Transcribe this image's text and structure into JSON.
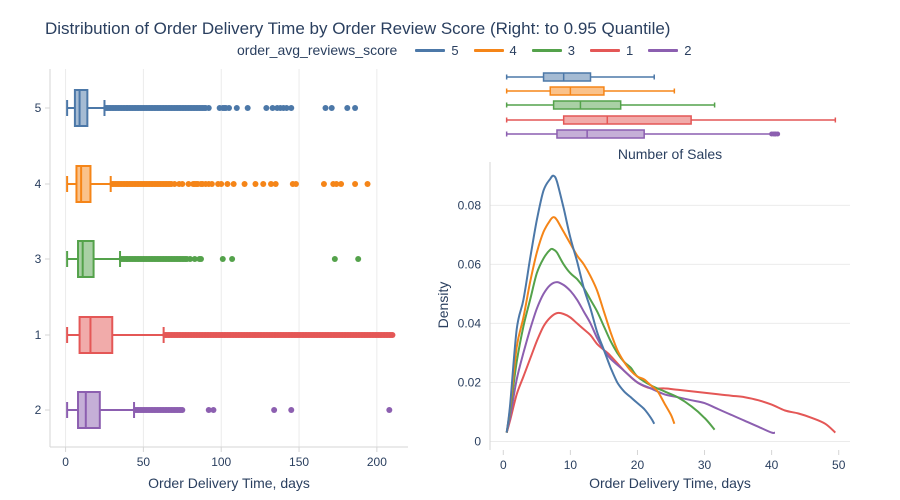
{
  "title": "Distribution of Order Delivery Time by Order Review Score (Right: to 0.95 Quantile)",
  "legend": {
    "title": "order_avg_reviews_score",
    "items": [
      {
        "label": "5",
        "color": "#4c78a8"
      },
      {
        "label": "4",
        "color": "#f58518"
      },
      {
        "label": "3",
        "color": "#54a24b"
      },
      {
        "label": "1",
        "color": "#e45756"
      },
      {
        "label": "2",
        "color": "#8c5fb0"
      }
    ]
  },
  "chart_data": [
    {
      "type": "box",
      "orientation": "horizontal",
      "xlabel": "Order Delivery Time, days",
      "ylabel": "",
      "xlim": [
        -10,
        220
      ],
      "xticks": [
        "0",
        "50",
        "100",
        "150",
        "200"
      ],
      "grid": true,
      "series": [
        {
          "name": "5",
          "min": 1,
          "q1": 6,
          "median": 9,
          "q3": 14,
          "upper_fence": 25,
          "outliers": [
            26,
            27,
            28,
            29,
            30,
            31,
            32,
            33,
            34,
            35,
            36,
            37,
            38,
            39,
            40,
            41,
            42,
            43,
            44,
            45,
            46,
            47,
            48,
            49,
            50,
            51,
            52,
            53,
            54,
            55,
            56,
            57,
            58,
            59,
            60,
            61,
            62,
            63,
            64,
            65,
            66,
            67,
            68,
            69,
            70,
            71,
            72,
            73,
            74,
            75,
            76,
            77,
            78,
            79,
            80,
            81,
            82,
            83,
            84,
            85,
            86,
            87,
            88,
            89,
            90,
            92,
            99,
            101,
            102,
            103,
            105,
            110,
            117,
            129,
            133,
            136,
            138,
            140,
            142,
            145,
            167,
            171,
            181,
            186
          ]
        },
        {
          "name": "4",
          "min": 1,
          "q1": 7,
          "median": 10,
          "q3": 16,
          "upper_fence": 29,
          "outliers": [
            30,
            31,
            32,
            33,
            34,
            35,
            36,
            37,
            38,
            39,
            40,
            41,
            42,
            43,
            44,
            45,
            46,
            47,
            48,
            49,
            50,
            51,
            52,
            53,
            54,
            55,
            56,
            57,
            58,
            59,
            60,
            61,
            62,
            63,
            64,
            65,
            66,
            67,
            68,
            70,
            73,
            75,
            79,
            82,
            83,
            84,
            85,
            87,
            88,
            90,
            92,
            94,
            98,
            100,
            104,
            108,
            115,
            122,
            127,
            132,
            135,
            146,
            148,
            166,
            172,
            174,
            177,
            186,
            194
          ]
        },
        {
          "name": "3",
          "min": 1,
          "q1": 8,
          "median": 11,
          "q3": 18,
          "upper_fence": 35,
          "outliers": [
            36,
            37,
            38,
            39,
            40,
            41,
            42,
            43,
            44,
            45,
            46,
            47,
            48,
            49,
            50,
            51,
            52,
            53,
            54,
            55,
            56,
            57,
            58,
            59,
            60,
            61,
            62,
            63,
            64,
            65,
            66,
            67,
            68,
            69,
            70,
            71,
            72,
            73,
            74,
            75,
            76,
            77,
            78,
            80,
            83,
            86,
            87,
            101,
            107,
            173,
            188
          ]
        },
        {
          "name": "1",
          "min": 1,
          "q1": 9,
          "median": 16,
          "q3": 30,
          "upper_fence": 63,
          "outliers": [
            64,
            65,
            66,
            67,
            68,
            69,
            70,
            71,
            72,
            73,
            74,
            75,
            76,
            77,
            78,
            79,
            80,
            81,
            82,
            83,
            84,
            85,
            86,
            87,
            88,
            89,
            90,
            91,
            92,
            93,
            94,
            95,
            96,
            97,
            98,
            99,
            100,
            101,
            102,
            103,
            104,
            105,
            106,
            107,
            108,
            109,
            110,
            111,
            112,
            113,
            114,
            115,
            116,
            117,
            118,
            119,
            120,
            121,
            122,
            123,
            124,
            125,
            126,
            127,
            128,
            129,
            130,
            131,
            132,
            133,
            134,
            135,
            136,
            137,
            138,
            139,
            140,
            141,
            142,
            143,
            144,
            145,
            146,
            147,
            148,
            149,
            150,
            151,
            152,
            153,
            154,
            155,
            156,
            157,
            158,
            159,
            160,
            161,
            162,
            163,
            164,
            165,
            166,
            167,
            168,
            169,
            170,
            171,
            172,
            173,
            174,
            175,
            176,
            177,
            178,
            179,
            180,
            181,
            182,
            183,
            184,
            185,
            186,
            187,
            188,
            189,
            190,
            191,
            192,
            193,
            194,
            195,
            196,
            197,
            198,
            199,
            200,
            201,
            202,
            203,
            204,
            205,
            206,
            207,
            208,
            209,
            210
          ]
        },
        {
          "name": "2",
          "min": 1,
          "q1": 8,
          "median": 13,
          "q3": 22,
          "upper_fence": 44,
          "outliers": [
            45,
            46,
            47,
            48,
            49,
            50,
            51,
            52,
            53,
            54,
            55,
            56,
            57,
            58,
            59,
            60,
            61,
            62,
            63,
            64,
            65,
            66,
            67,
            68,
            69,
            70,
            71,
            72,
            73,
            74,
            75,
            92,
            95,
            134,
            145,
            208
          ]
        }
      ]
    },
    {
      "type": "box",
      "orientation": "horizontal",
      "xlabel": "",
      "title": "Number of Sales",
      "series": [
        {
          "name": "5",
          "min": 0.5,
          "q1": 6,
          "median": 9,
          "q3": 13,
          "max": 22.5
        },
        {
          "name": "4",
          "min": 0.5,
          "q1": 7,
          "median": 10,
          "q3": 15,
          "max": 25.5
        },
        {
          "name": "3",
          "min": 0.5,
          "q1": 7.5,
          "median": 11.5,
          "q3": 17.5,
          "max": 31.5
        },
        {
          "name": "1",
          "min": 0.5,
          "q1": 9,
          "median": 15.5,
          "q3": 28,
          "max": 49.5
        },
        {
          "name": "2",
          "min": 0.5,
          "q1": 8,
          "median": 12.5,
          "q3": 21,
          "max": 40.5
        }
      ]
    },
    {
      "type": "line",
      "xlabel": "Order Delivery Time, days",
      "ylabel": "Density",
      "xlim": [
        -1.5,
        51
      ],
      "ylim": [
        -0.002,
        0.093
      ],
      "xticks": [
        "0",
        "10",
        "20",
        "30",
        "40",
        "50"
      ],
      "yticks": [
        "0",
        "0.02",
        "0.04",
        "0.06",
        "0.08"
      ],
      "grid": true,
      "series": [
        {
          "name": "5",
          "x": [
            0.5,
            1,
            2,
            3,
            4,
            5,
            6,
            7,
            7.5,
            8,
            9,
            10,
            11,
            12,
            13,
            14,
            15,
            16,
            17,
            18,
            19,
            20,
            21,
            22,
            22.5
          ],
          "y": [
            0.003,
            0.012,
            0.038,
            0.048,
            0.062,
            0.075,
            0.085,
            0.089,
            0.09,
            0.088,
            0.079,
            0.069,
            0.061,
            0.052,
            0.045,
            0.037,
            0.031,
            0.025,
            0.02,
            0.017,
            0.015,
            0.013,
            0.011,
            0.008,
            0.006
          ]
        },
        {
          "name": "4",
          "x": [
            0.5,
            1,
            2,
            3,
            4,
            5,
            6,
            7,
            7.5,
            8,
            9,
            10,
            11,
            12,
            13,
            14,
            15,
            16,
            17,
            18,
            19,
            20,
            21,
            22,
            23,
            24,
            25,
            25.5
          ],
          "y": [
            0.003,
            0.011,
            0.032,
            0.042,
            0.054,
            0.064,
            0.071,
            0.075,
            0.076,
            0.075,
            0.071,
            0.067,
            0.063,
            0.06,
            0.056,
            0.051,
            0.044,
            0.037,
            0.031,
            0.027,
            0.024,
            0.022,
            0.021,
            0.019,
            0.017,
            0.013,
            0.009,
            0.006
          ]
        },
        {
          "name": "3",
          "x": [
            0.5,
            1,
            2,
            3,
            4,
            5,
            6,
            7,
            7.5,
            8,
            9,
            10,
            11,
            12,
            13,
            14,
            15,
            16,
            17,
            18,
            19,
            20,
            22,
            24,
            26,
            28,
            30,
            31.5
          ],
          "y": [
            0.003,
            0.01,
            0.027,
            0.039,
            0.048,
            0.057,
            0.062,
            0.065,
            0.065,
            0.064,
            0.06,
            0.057,
            0.055,
            0.052,
            0.048,
            0.044,
            0.039,
            0.034,
            0.03,
            0.027,
            0.025,
            0.022,
            0.019,
            0.017,
            0.015,
            0.012,
            0.008,
            0.004
          ]
        },
        {
          "name": "1",
          "x": [
            0.5,
            1,
            2,
            3,
            4,
            5,
            6,
            7,
            8,
            9,
            10,
            11,
            12,
            13,
            14,
            15,
            16,
            18,
            20,
            22,
            24,
            26,
            28,
            30,
            32,
            34,
            36,
            38,
            40,
            42,
            44,
            46,
            48,
            49.5
          ],
          "y": [
            0.003,
            0.007,
            0.016,
            0.022,
            0.028,
            0.034,
            0.039,
            0.042,
            0.0435,
            0.0432,
            0.042,
            0.04,
            0.038,
            0.036,
            0.033,
            0.031,
            0.029,
            0.024,
            0.02,
            0.018,
            0.018,
            0.0175,
            0.017,
            0.0165,
            0.016,
            0.0155,
            0.015,
            0.014,
            0.0125,
            0.0105,
            0.0095,
            0.008,
            0.006,
            0.003
          ]
        },
        {
          "name": "2",
          "x": [
            0.5,
            1,
            2,
            3,
            4,
            5,
            6,
            7,
            8,
            9,
            10,
            11,
            12,
            13,
            14,
            15,
            16,
            18,
            20,
            22,
            24,
            26,
            28,
            30,
            32,
            34,
            36,
            38,
            40,
            40.5
          ],
          "y": [
            0.003,
            0.008,
            0.021,
            0.03,
            0.038,
            0.045,
            0.05,
            0.053,
            0.054,
            0.053,
            0.051,
            0.048,
            0.044,
            0.04,
            0.035,
            0.031,
            0.028,
            0.024,
            0.02,
            0.018,
            0.016,
            0.015,
            0.014,
            0.013,
            0.011,
            0.009,
            0.007,
            0.005,
            0.003,
            0.003
          ]
        }
      ]
    }
  ]
}
